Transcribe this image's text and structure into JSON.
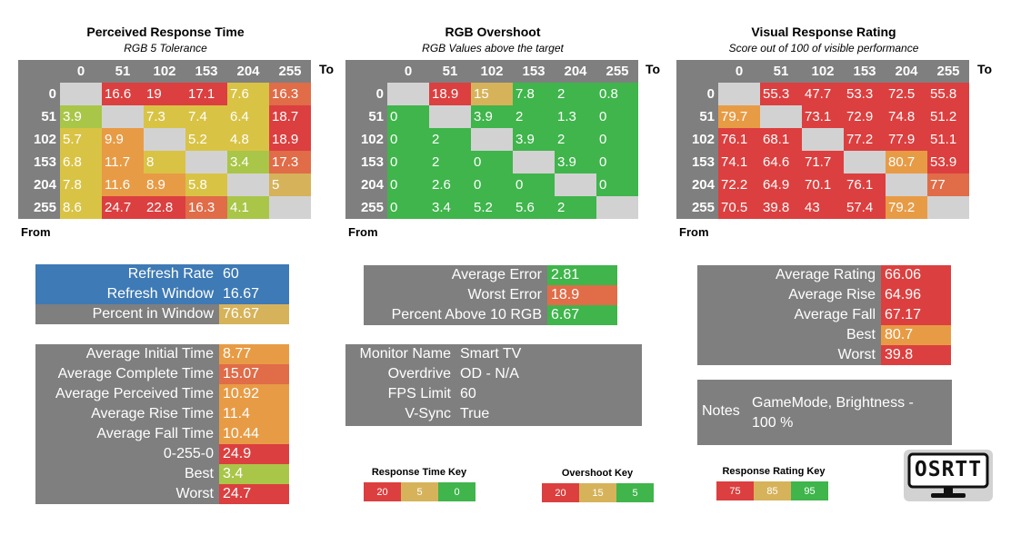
{
  "colors": {
    "red": "#dc3f3f",
    "orange": "#e06c48",
    "amber": "#e89b45",
    "tan": "#d6b35a",
    "yellow": "#d9c345",
    "lime": "#a9c648",
    "green": "#3fb54b",
    "gray": "#7f7f7f",
    "diag": "#d2d2d2",
    "blue": "#3e7ab5"
  },
  "labels": {
    "to": "To",
    "from": "From"
  },
  "chart_data": [
    {
      "type": "heatmap",
      "title": "Perceived Response Time",
      "subtitle": "RGB 5 Tolerance",
      "columns": [
        "0",
        "51",
        "102",
        "153",
        "204",
        "255"
      ],
      "rows": [
        "0",
        "51",
        "102",
        "153",
        "204",
        "255"
      ],
      "values": [
        [
          "",
          "16.6",
          "19",
          "17.1",
          "7.6",
          "16.3"
        ],
        [
          "3.9",
          "",
          "7.3",
          "7.4",
          "6.4",
          "18.7"
        ],
        [
          "5.7",
          "9.9",
          "",
          "5.2",
          "4.8",
          "18.9"
        ],
        [
          "6.8",
          "11.7",
          "8",
          "",
          "3.4",
          "17.3"
        ],
        [
          "7.8",
          "11.6",
          "8.9",
          "5.8",
          "",
          "5"
        ],
        [
          "8.6",
          "24.7",
          "22.8",
          "16.3",
          "4.1",
          ""
        ]
      ],
      "cell_colors": [
        [
          "diag",
          "red",
          "red",
          "red",
          "yellow",
          "orange"
        ],
        [
          "lime",
          "diag",
          "yellow",
          "yellow",
          "yellow",
          "red"
        ],
        [
          "yellow",
          "amber",
          "diag",
          "yellow",
          "yellow",
          "red"
        ],
        [
          "yellow",
          "amber",
          "yellow",
          "diag",
          "lime",
          "orange"
        ],
        [
          "yellow",
          "amber",
          "amber",
          "yellow",
          "diag",
          "tan"
        ],
        [
          "yellow",
          "red",
          "red",
          "orange",
          "lime",
          "diag"
        ]
      ]
    },
    {
      "type": "heatmap",
      "title": "RGB Overshoot",
      "subtitle": "RGB Values above the target",
      "columns": [
        "0",
        "51",
        "102",
        "153",
        "204",
        "255"
      ],
      "rows": [
        "0",
        "51",
        "102",
        "153",
        "204",
        "255"
      ],
      "values": [
        [
          "",
          "18.9",
          "15",
          "7.8",
          "2",
          "0.8"
        ],
        [
          "0",
          "",
          "3.9",
          "2",
          "1.3",
          "0"
        ],
        [
          "0",
          "2",
          "",
          "3.9",
          "2",
          "0"
        ],
        [
          "0",
          "2",
          "0",
          "",
          "3.9",
          "0"
        ],
        [
          "0",
          "2.6",
          "0",
          "0",
          "",
          "0"
        ],
        [
          "0",
          "3.4",
          "5.2",
          "5.6",
          "2",
          ""
        ]
      ],
      "cell_colors": [
        [
          "diag",
          "red",
          "tan",
          "green",
          "green",
          "green"
        ],
        [
          "green",
          "diag",
          "green",
          "green",
          "green",
          "green"
        ],
        [
          "green",
          "green",
          "diag",
          "green",
          "green",
          "green"
        ],
        [
          "green",
          "green",
          "green",
          "diag",
          "green",
          "green"
        ],
        [
          "green",
          "green",
          "green",
          "green",
          "diag",
          "green"
        ],
        [
          "green",
          "green",
          "green",
          "green",
          "green",
          "diag"
        ]
      ]
    },
    {
      "type": "heatmap",
      "title": "Visual Response Rating",
      "subtitle": "Score out of 100 of visible performance",
      "columns": [
        "0",
        "51",
        "102",
        "153",
        "204",
        "255"
      ],
      "rows": [
        "0",
        "51",
        "102",
        "153",
        "204",
        "255"
      ],
      "values": [
        [
          "",
          "55.3",
          "47.7",
          "53.3",
          "72.5",
          "55.8"
        ],
        [
          "79.7",
          "",
          "73.1",
          "72.9",
          "74.8",
          "51.2"
        ],
        [
          "76.1",
          "68.1",
          "",
          "77.2",
          "77.9",
          "51.1"
        ],
        [
          "74.1",
          "64.6",
          "71.7",
          "",
          "80.7",
          "53.9"
        ],
        [
          "72.2",
          "64.9",
          "70.1",
          "76.1",
          "",
          "77"
        ],
        [
          "70.5",
          "39.8",
          "43",
          "57.4",
          "79.2",
          ""
        ]
      ],
      "cell_colors": [
        [
          "diag",
          "red",
          "red",
          "red",
          "red",
          "red"
        ],
        [
          "amber",
          "diag",
          "red",
          "red",
          "red",
          "red"
        ],
        [
          "red",
          "red",
          "diag",
          "red",
          "red",
          "red"
        ],
        [
          "red",
          "red",
          "red",
          "diag",
          "amber",
          "red"
        ],
        [
          "red",
          "red",
          "red",
          "red",
          "diag",
          "orange"
        ],
        [
          "red",
          "red",
          "red",
          "red",
          "amber",
          "diag"
        ]
      ]
    }
  ],
  "refresh_table": [
    {
      "label": "Refresh Rate",
      "value": "60",
      "key_color": "blue",
      "value_color": "blue"
    },
    {
      "label": "Refresh Window",
      "value": "16.67",
      "key_color": "blue",
      "value_color": "blue"
    },
    {
      "label": "Percent in Window",
      "value": "76.67",
      "key_color": "gray",
      "value_color": "tan"
    }
  ],
  "time_table": [
    {
      "label": "Average Initial Time",
      "value": "8.77",
      "value_color": "amber"
    },
    {
      "label": "Average Complete Time",
      "value": "15.07",
      "value_color": "orange"
    },
    {
      "label": "Average Perceived Time",
      "value": "10.92",
      "value_color": "amber"
    },
    {
      "label": "Average Rise Time",
      "value": "11.4",
      "value_color": "amber"
    },
    {
      "label": "Average Fall Time",
      "value": "10.44",
      "value_color": "amber"
    },
    {
      "label": "0-255-0",
      "value": "24.9",
      "value_color": "red"
    },
    {
      "label": "Best",
      "value": "3.4",
      "value_color": "lime"
    },
    {
      "label": "Worst",
      "value": "24.7",
      "value_color": "red"
    }
  ],
  "error_table": [
    {
      "label": "Average Error",
      "value": "2.81",
      "value_color": "green"
    },
    {
      "label": "Worst Error",
      "value": "18.9",
      "value_color": "orange"
    },
    {
      "label": "Percent Above 10 RGB",
      "value": "6.67",
      "value_color": "green"
    }
  ],
  "monitor_table": [
    {
      "label": "Monitor Name",
      "value": "Smart TV"
    },
    {
      "label": "Overdrive",
      "value": "OD - N/A"
    },
    {
      "label": "FPS Limit",
      "value": "60"
    },
    {
      "label": "V-Sync",
      "value": "True"
    }
  ],
  "rating_table": [
    {
      "label": "Average Rating",
      "value": "66.06",
      "value_color": "red"
    },
    {
      "label": "Average Rise",
      "value": "64.96",
      "value_color": "red"
    },
    {
      "label": "Average Fall",
      "value": "67.17",
      "value_color": "red"
    },
    {
      "label": "Best",
      "value": "80.7",
      "value_color": "amber"
    },
    {
      "label": "Worst",
      "value": "39.8",
      "value_color": "red"
    }
  ],
  "notes": {
    "label": "Notes",
    "text": "GameMode, Brightness - 100 %"
  },
  "keys": [
    {
      "title": "Response Time Key",
      "items": [
        {
          "text": "20",
          "color": "red"
        },
        {
          "text": "5",
          "color": "tan"
        },
        {
          "text": "0",
          "color": "green"
        }
      ]
    },
    {
      "title": "Overshoot Key",
      "items": [
        {
          "text": "20",
          "color": "red"
        },
        {
          "text": "15",
          "color": "tan"
        },
        {
          "text": "5",
          "color": "green"
        }
      ]
    },
    {
      "title": "Response Rating Key",
      "items": [
        {
          "text": "75",
          "color": "red"
        },
        {
          "text": "85",
          "color": "tan"
        },
        {
          "text": "95",
          "color": "green"
        }
      ]
    }
  ],
  "logo": {
    "text": "OSRTT",
    "icon": "monitor-logo-icon"
  }
}
